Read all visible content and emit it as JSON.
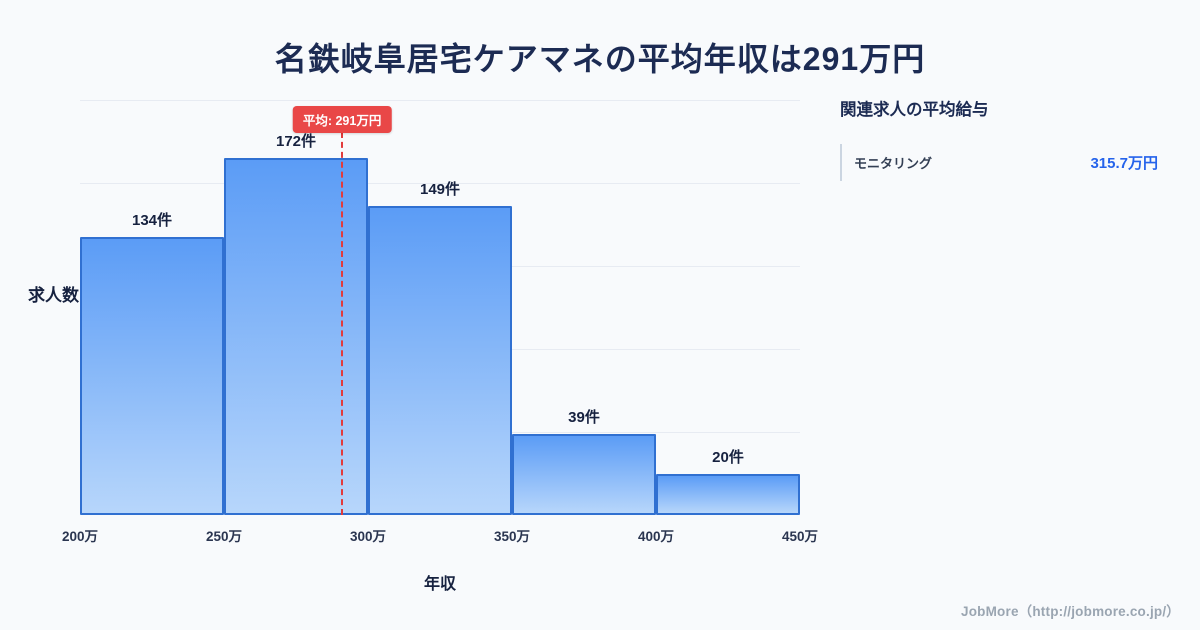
{
  "page": {
    "title": "名鉄岐阜居宅ケアマネの平均年収は291万円"
  },
  "chart_data": {
    "type": "bar",
    "title": "名鉄岐阜居宅ケアマネの平均年収は291万円",
    "xlabel": "年収",
    "ylabel": "求人数",
    "categories": [
      "200万-250万",
      "250万-300万",
      "300万-350万",
      "350万-400万",
      "400万-450万"
    ],
    "values": [
      134,
      172,
      149,
      39,
      20
    ],
    "bar_labels": [
      "134件",
      "172件",
      "149件",
      "39件",
      "20件"
    ],
    "x_ticks": [
      "200万",
      "250万",
      "300万",
      "350万",
      "400万",
      "450万"
    ],
    "x_range": [
      200,
      450
    ],
    "ylim": [
      0,
      200
    ],
    "gridlines": [
      40,
      80,
      120,
      160,
      200
    ],
    "grid": "horizontal",
    "legend": "none",
    "average": {
      "value": 291,
      "label": "平均: 291万円"
    },
    "colors": {
      "bar_gradient_top": "#5b9cf6",
      "bar_gradient_bottom": "#b7d6fb",
      "bar_border": "#3070d1",
      "average_line": "#e23b3b",
      "badge_background": "#e94747",
      "badge_text": "#ffffff"
    }
  },
  "side_panel": {
    "title": "関連求人の平均給与",
    "rows": [
      {
        "label": "モニタリング",
        "value": "315.7万円"
      }
    ],
    "value_color": "#2563eb"
  },
  "footer": {
    "credit": "JobMore（http://jobmore.co.jp/）"
  }
}
